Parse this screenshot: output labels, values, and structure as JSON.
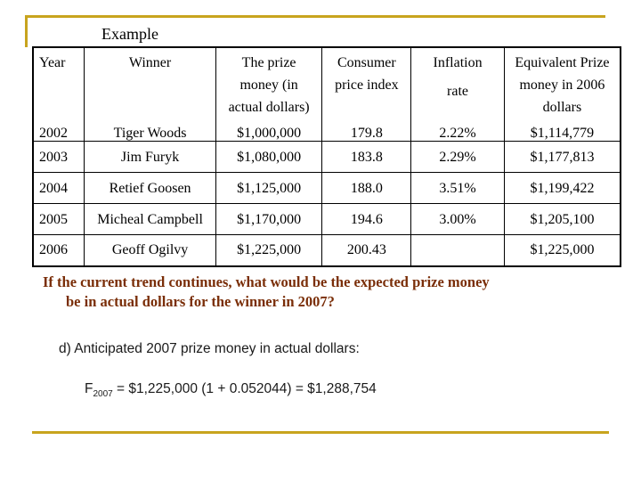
{
  "title": "Example",
  "table": {
    "headers": {
      "year": "Year",
      "winner": "Winner",
      "prize_lines": [
        "The prize",
        "money (in",
        "actual dollars)"
      ],
      "cpi_lines": [
        "Consumer",
        "price index"
      ],
      "inflation_lines": [
        "Inflation",
        "rate"
      ],
      "equivalent_lines": [
        "Equivalent Prize",
        "money in 2006",
        "dollars"
      ]
    },
    "rows": [
      {
        "year": "2002",
        "winner": "Tiger  Woods",
        "prize": "$1,000,000",
        "cpi": "179.8",
        "inflation": "2.22%",
        "equivalent": "$1,114,779"
      },
      {
        "year": "2003",
        "winner": "Jim Furyk",
        "prize": "$1,080,000",
        "cpi": "183.8",
        "inflation": "2.29%",
        "equivalent": "$1,177,813"
      },
      {
        "year": "2004",
        "winner": "Retief  Goosen",
        "prize": "$1,125,000",
        "cpi": "188.0",
        "inflation": "3.51%",
        "equivalent": "$1,199,422"
      },
      {
        "year": "2005",
        "winner": "Micheal  Campbell",
        "prize": "$1,170,000",
        "cpi": "194.6",
        "inflation": "3.00%",
        "equivalent": "$1,205,100"
      },
      {
        "year": "2006",
        "winner": "Geoff  Ogilvy",
        "prize": "$1,225,000",
        "cpi": "200.43",
        "inflation": "",
        "equivalent": "$1,225,000"
      }
    ]
  },
  "question": {
    "line1": "If the current trend continues, what would be the expected prize money",
    "line2": "be in actual dollars for the winner in 2007?"
  },
  "solution": {
    "label": "d)  Anticipated 2007 prize money in actual dollars:",
    "formula_var": "F",
    "formula_sub": "2007",
    "formula_rest": " = $1,225,000 (1 + 0.052044) = $1,288,754"
  }
}
